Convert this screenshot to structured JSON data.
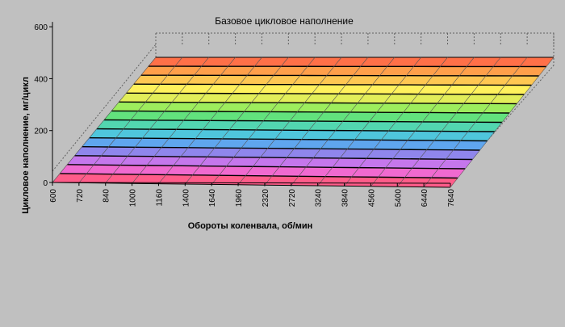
{
  "chart_data": {
    "type": "surface",
    "title": "Базовое цикловое наполнение",
    "xlabel": "Обороты коленвала, об/мин",
    "ylabel": "Цикловое наполнение, мг/цикл",
    "x_ticks": [
      "600",
      "720",
      "840",
      "1000",
      "1160",
      "1400",
      "1640",
      "1960",
      "2320",
      "2720",
      "3240",
      "3840",
      "4560",
      "5400",
      "6440",
      "7640"
    ],
    "z_ticks": [
      "0",
      "200",
      "400",
      "600"
    ],
    "zlim": [
      0,
      700
    ],
    "grid": true,
    "legend": "none",
    "band_colors": [
      "#ff5c8a",
      "#f06ad0",
      "#c577ec",
      "#8f86ec",
      "#5fa6ee",
      "#4fc6dc",
      "#52d6b0",
      "#62e27d",
      "#9ded5d",
      "#e2ee59",
      "#fff15c",
      "#ffc752",
      "#ff9f4a",
      "#ff7048"
    ]
  }
}
